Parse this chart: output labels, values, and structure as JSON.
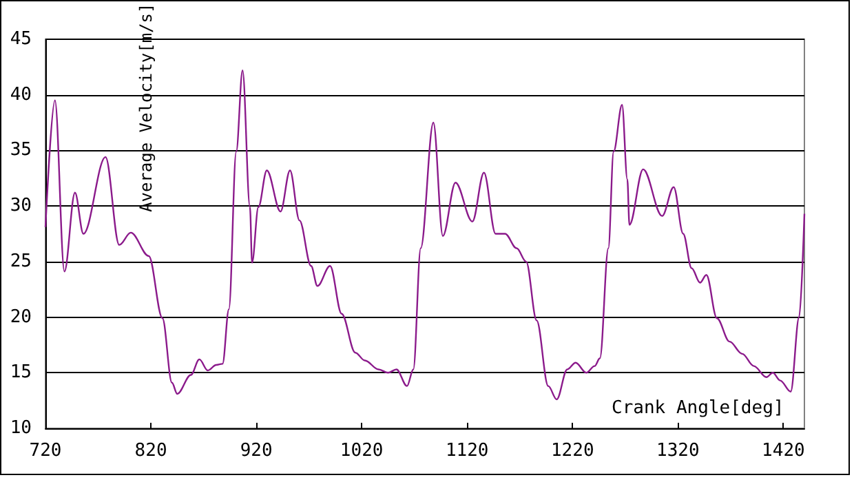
{
  "chart_data": {
    "type": "line",
    "xlabel": "Crank Angle[deg]",
    "ylabel": "Average Velocity[m/s]",
    "x": [
      720,
      729,
      738,
      748,
      756,
      777,
      790,
      801,
      818,
      831,
      840,
      845,
      858,
      866,
      874,
      882,
      888,
      894,
      901,
      907,
      914,
      916,
      922,
      930,
      943,
      952,
      961,
      972,
      978,
      990,
      1001,
      1014,
      1023,
      1036,
      1045,
      1053,
      1063,
      1069,
      1076,
      1088,
      1097,
      1109,
      1125,
      1136,
      1147,
      1156,
      1167,
      1176,
      1186,
      1197,
      1205,
      1215,
      1223,
      1233,
      1241,
      1246,
      1254,
      1259,
      1267,
      1272,
      1274,
      1287,
      1305,
      1316,
      1325,
      1333,
      1341,
      1347,
      1357,
      1369,
      1381,
      1392,
      1404,
      1410,
      1417,
      1427,
      1435,
      1440
    ],
    "series": [
      {
        "color": "#8b1a8b",
        "values": [
          28.1,
          39.5,
          24.1,
          31.2,
          27.5,
          34.4,
          26.5,
          27.6,
          25.5,
          19.9,
          14.1,
          13.1,
          14.8,
          16.2,
          15.2,
          15.7,
          15.8,
          20.7,
          34.9,
          42.2,
          29.9,
          24.9,
          29.9,
          33.2,
          29.5,
          33.2,
          28.7,
          24.6,
          22.8,
          24.6,
          20.3,
          16.8,
          16.1,
          15.3,
          15.0,
          15.3,
          13.8,
          15.3,
          26.2,
          37.5,
          27.3,
          32.1,
          28.6,
          33.0,
          27.5,
          27.5,
          26.2,
          25.0,
          19.7,
          13.8,
          12.6,
          15.3,
          15.9,
          15.0,
          15.6,
          16.3,
          26.2,
          34.9,
          39.1,
          32.4,
          28.3,
          33.3,
          29.1,
          31.7,
          27.5,
          24.4,
          23.1,
          23.8,
          19.9,
          17.8,
          16.7,
          15.6,
          14.6,
          15.0,
          14.3,
          13.3,
          20.0,
          29.3
        ]
      }
    ],
    "xlim": [
      720,
      1440
    ],
    "xticks": [
      720,
      820,
      920,
      1020,
      1120,
      1220,
      1320,
      1420
    ],
    "ylim": [
      10,
      45
    ],
    "yticks": [
      10,
      15,
      20,
      25,
      30,
      35,
      40,
      45
    ],
    "grid": "y",
    "marker": "none",
    "line_style": "solid"
  }
}
